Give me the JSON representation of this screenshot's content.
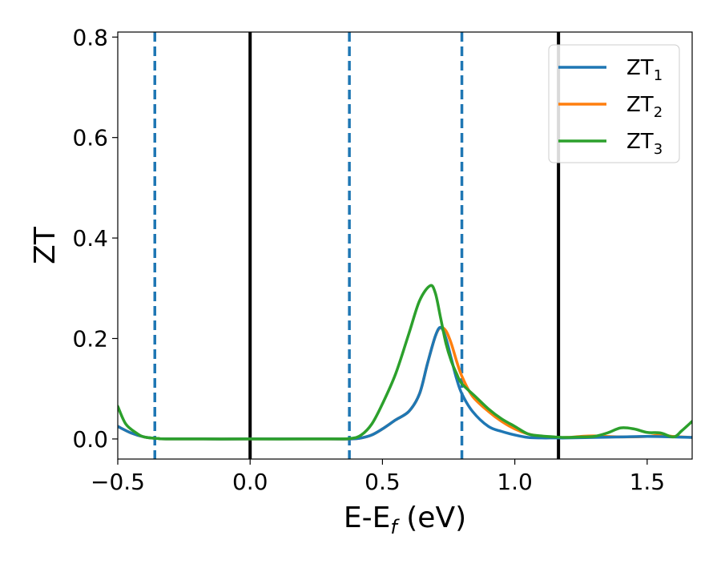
{
  "chart_data": {
    "type": "line",
    "title": "",
    "xlabel": "E-E_f (eV)",
    "xlabel_parts": {
      "main": "E-E",
      "sub": "f",
      "unit": " (eV)"
    },
    "ylabel": "ZT",
    "xlim": [
      -0.5,
      1.67
    ],
    "ylim": [
      -0.04,
      0.81
    ],
    "grid": false,
    "legend_position": "top-right",
    "x_ticks": [
      -0.5,
      0.0,
      0.5,
      1.0,
      1.5
    ],
    "x_tick_labels": [
      "−0.5",
      "0.0",
      "0.5",
      "1.0",
      "1.5"
    ],
    "y_ticks": [
      0.0,
      0.2,
      0.4,
      0.6,
      0.8
    ],
    "y_tick_labels": [
      "0.0",
      "0.2",
      "0.4",
      "0.6",
      "0.8"
    ],
    "vertical_lines": [
      {
        "x": -0.36,
        "style": "dashed",
        "color": "#1f77b4"
      },
      {
        "x": 0.0,
        "style": "solid",
        "color": "#000000"
      },
      {
        "x": 0.375,
        "style": "dashed",
        "color": "#1f77b4"
      },
      {
        "x": 0.8,
        "style": "dashed",
        "color": "#1f77b4"
      },
      {
        "x": 1.165,
        "style": "solid",
        "color": "#000000"
      }
    ],
    "series": [
      {
        "name": "ZT",
        "name_sub": "1",
        "color": "#1f77b4",
        "x": [
          -0.5,
          -0.45,
          -0.4,
          -0.35,
          -0.3,
          0.0,
          0.3,
          0.38,
          0.42,
          0.46,
          0.5,
          0.55,
          0.6,
          0.64,
          0.67,
          0.7,
          0.72,
          0.74,
          0.76,
          0.78,
          0.8,
          0.84,
          0.9,
          0.95,
          1.0,
          1.05,
          1.1,
          1.15,
          1.2,
          1.3,
          1.4,
          1.5,
          1.6,
          1.67
        ],
        "y": [
          0.025,
          0.012,
          0.004,
          0.001,
          0.0,
          0.0,
          0.0,
          0.0,
          0.002,
          0.008,
          0.02,
          0.038,
          0.055,
          0.09,
          0.15,
          0.205,
          0.222,
          0.2,
          0.16,
          0.12,
          0.09,
          0.055,
          0.025,
          0.015,
          0.008,
          0.003,
          0.002,
          0.002,
          0.002,
          0.003,
          0.004,
          0.005,
          0.004,
          0.003
        ]
      },
      {
        "name": "ZT",
        "name_sub": "2",
        "color": "#ff7f0e",
        "x": [
          -0.5,
          -0.45,
          -0.4,
          -0.35,
          -0.3,
          0.0,
          0.3,
          0.38,
          0.42,
          0.46,
          0.5,
          0.55,
          0.6,
          0.64,
          0.67,
          0.7,
          0.72,
          0.74,
          0.76,
          0.78,
          0.8,
          0.84,
          0.9,
          0.95,
          1.0,
          1.05,
          1.1,
          1.15,
          1.2,
          1.25,
          1.3,
          1.4,
          1.5,
          1.55,
          1.6,
          1.67
        ],
        "y": [
          0.025,
          0.012,
          0.004,
          0.001,
          0.0,
          0.0,
          0.0,
          0.0,
          0.002,
          0.008,
          0.02,
          0.038,
          0.055,
          0.09,
          0.15,
          0.205,
          0.222,
          0.215,
          0.19,
          0.155,
          0.125,
          0.085,
          0.055,
          0.035,
          0.02,
          0.01,
          0.005,
          0.003,
          0.003,
          0.005,
          0.006,
          0.004,
          0.005,
          0.008,
          0.005,
          0.003
        ]
      },
      {
        "name": "ZT",
        "name_sub": "3",
        "color": "#2ca02c",
        "x": [
          -0.5,
          -0.47,
          -0.43,
          -0.4,
          -0.35,
          -0.3,
          0.0,
          0.3,
          0.38,
          0.42,
          0.46,
          0.5,
          0.55,
          0.6,
          0.64,
          0.68,
          0.7,
          0.72,
          0.74,
          0.76,
          0.78,
          0.8,
          0.85,
          0.9,
          0.95,
          1.0,
          1.05,
          1.1,
          1.15,
          1.2,
          1.25,
          1.3,
          1.35,
          1.4,
          1.45,
          1.5,
          1.55,
          1.6,
          1.63,
          1.67
        ],
        "y": [
          0.065,
          0.03,
          0.012,
          0.004,
          0.001,
          0.0,
          0.0,
          0.0,
          0.001,
          0.008,
          0.03,
          0.07,
          0.13,
          0.21,
          0.275,
          0.305,
          0.29,
          0.24,
          0.19,
          0.155,
          0.13,
          0.11,
          0.085,
          0.06,
          0.04,
          0.025,
          0.01,
          0.006,
          0.004,
          0.003,
          0.004,
          0.005,
          0.012,
          0.022,
          0.02,
          0.013,
          0.012,
          0.004,
          0.016,
          0.035
        ]
      }
    ]
  }
}
